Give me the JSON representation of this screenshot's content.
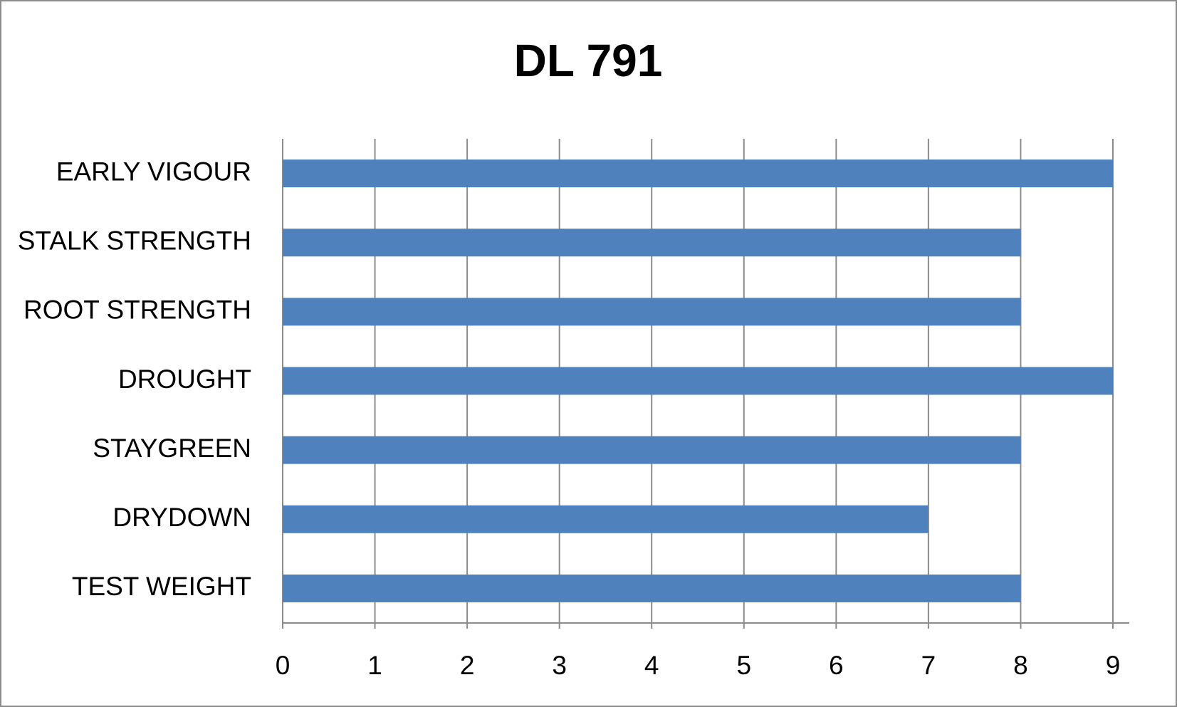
{
  "chart_data": {
    "type": "bar",
    "orientation": "horizontal",
    "title": "DL 791",
    "categories": [
      "EARLY VIGOUR",
      "STALK STRENGTH",
      "ROOT STRENGTH",
      "DROUGHT",
      "STAYGREEN",
      "DRYDOWN",
      "TEST WEIGHT"
    ],
    "values": [
      9,
      8,
      8,
      9,
      8,
      7,
      8
    ],
    "color": "#4f81bd",
    "xlim": [
      0,
      9
    ],
    "xticks": [
      0,
      1,
      2,
      3,
      4,
      5,
      6,
      7,
      8,
      9
    ],
    "grid": true
  }
}
